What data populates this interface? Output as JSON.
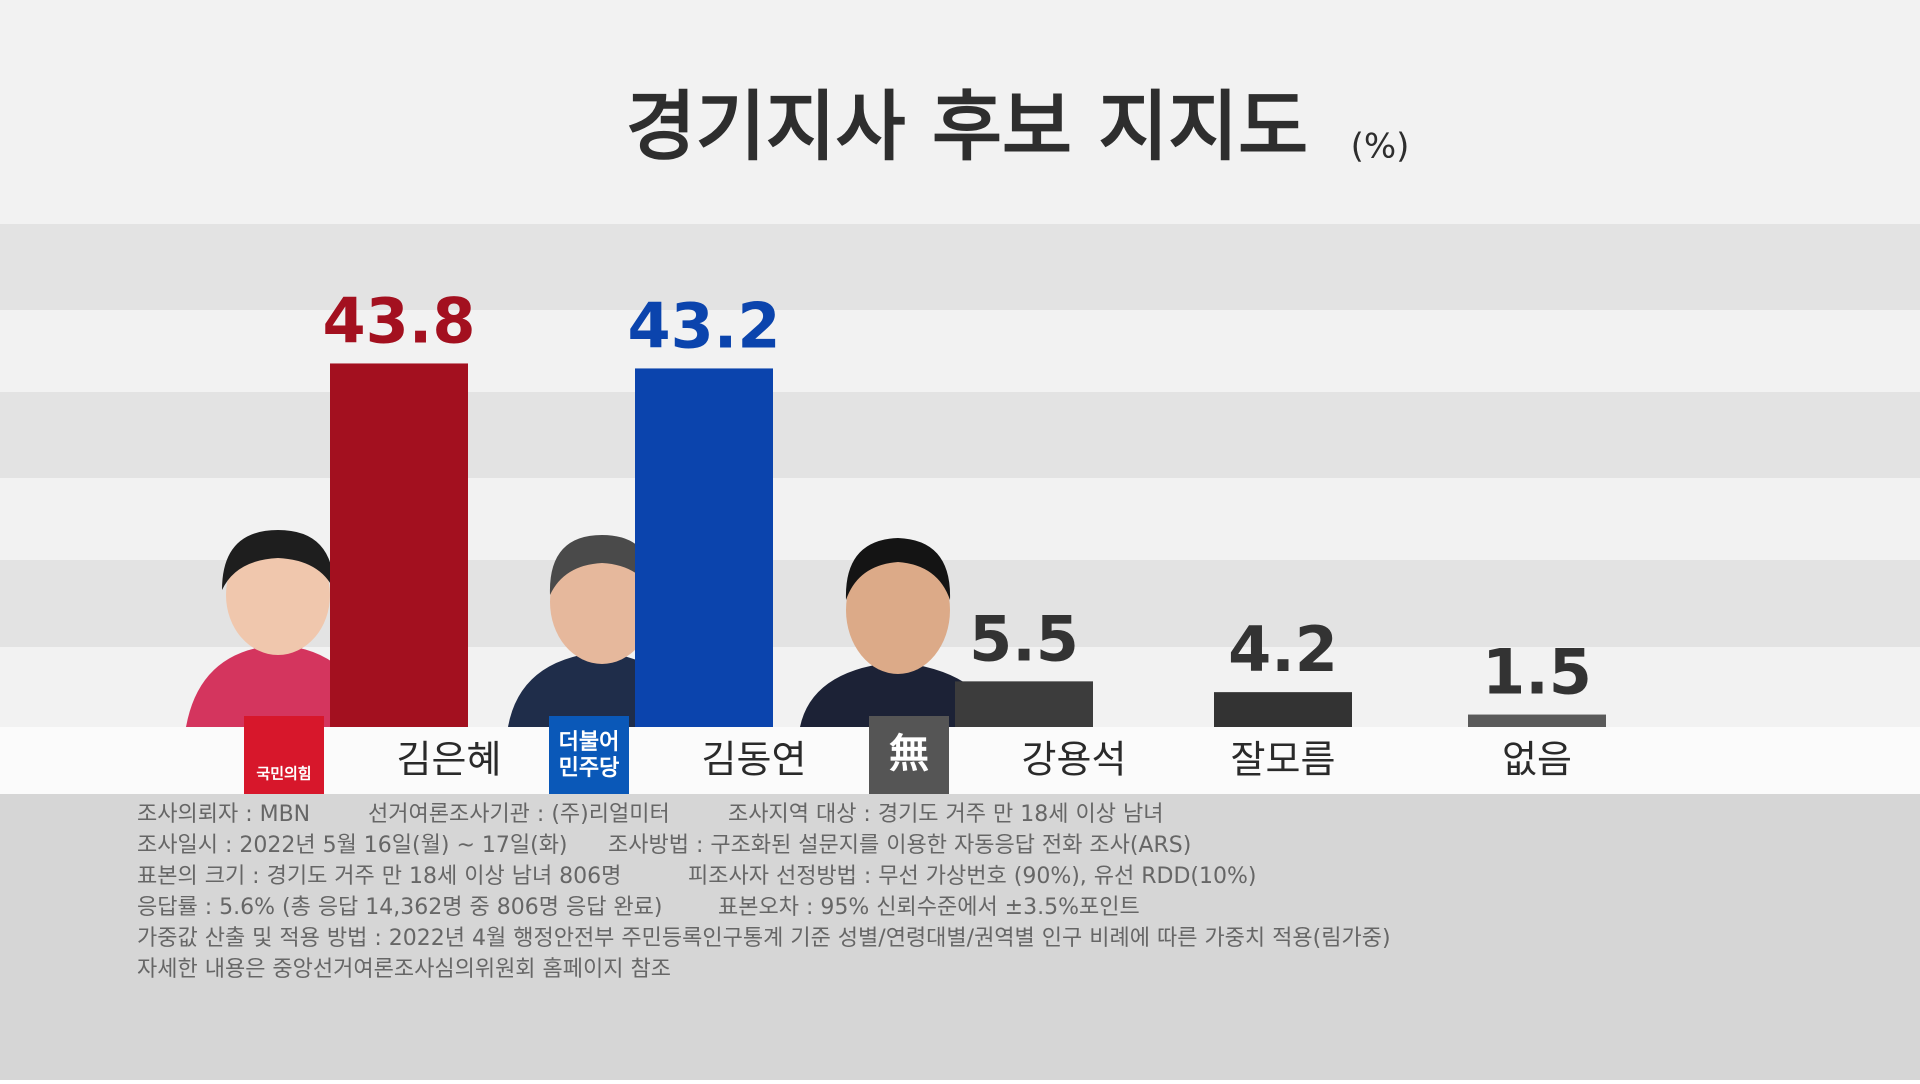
{
  "chart_data": {
    "type": "bar",
    "title": "경기지사 후보 지지도",
    "unit": "(%)",
    "categories": [
      "김은혜",
      "김동연",
      "강용석",
      "잘모름",
      "없음"
    ],
    "values": [
      43.8,
      43.2,
      5.5,
      4.2,
      1.5
    ],
    "colors": [
      "#a3101f",
      "#0b44ad",
      "#3c3c3c",
      "#333333",
      "#5a5a5a"
    ],
    "party_labels": [
      [
        "국민의힘"
      ],
      [
        "더불어",
        "민주당"
      ],
      [
        "無"
      ]
    ],
    "party_colors": [
      "#d7172b",
      "#0a58b8",
      "#555555"
    ],
    "notes": [
      [
        "조사의뢰자 : MBN",
        "선거여론조사기관 : (주)리얼미터",
        "조사지역 대상 : 경기도 거주 만 18세 이상 남녀"
      ],
      [
        "조사일시 : 2022년 5월 16일(월) ~ 17일(화)",
        "조사방법 : 구조화된 설문지를 이용한 자동응답 전화 조사(ARS)"
      ],
      [
        "표본의 크기 : 경기도 거주 만 18세 이상 남녀 806명",
        "피조사자 선정방법 : 무선 가상번호 (90%), 유선 RDD(10%)"
      ],
      [
        "응답률 : 5.6% (총 응답 14,362명 중 806명 응답 완료)",
        "표본오차 : 95% 신뢰수준에서 ±3.5%포인트"
      ],
      [
        "가중값 산출 및 적용 방법 : 2022년 4월 행정안전부 주민등록인구통계 기준 성별/연령대별/권역별 인구 비례에 따른 가중치 적용(림가중)"
      ],
      [
        "자세한 내용은 중앙선거여론조사심의위원회 홈페이지 참조"
      ]
    ]
  }
}
